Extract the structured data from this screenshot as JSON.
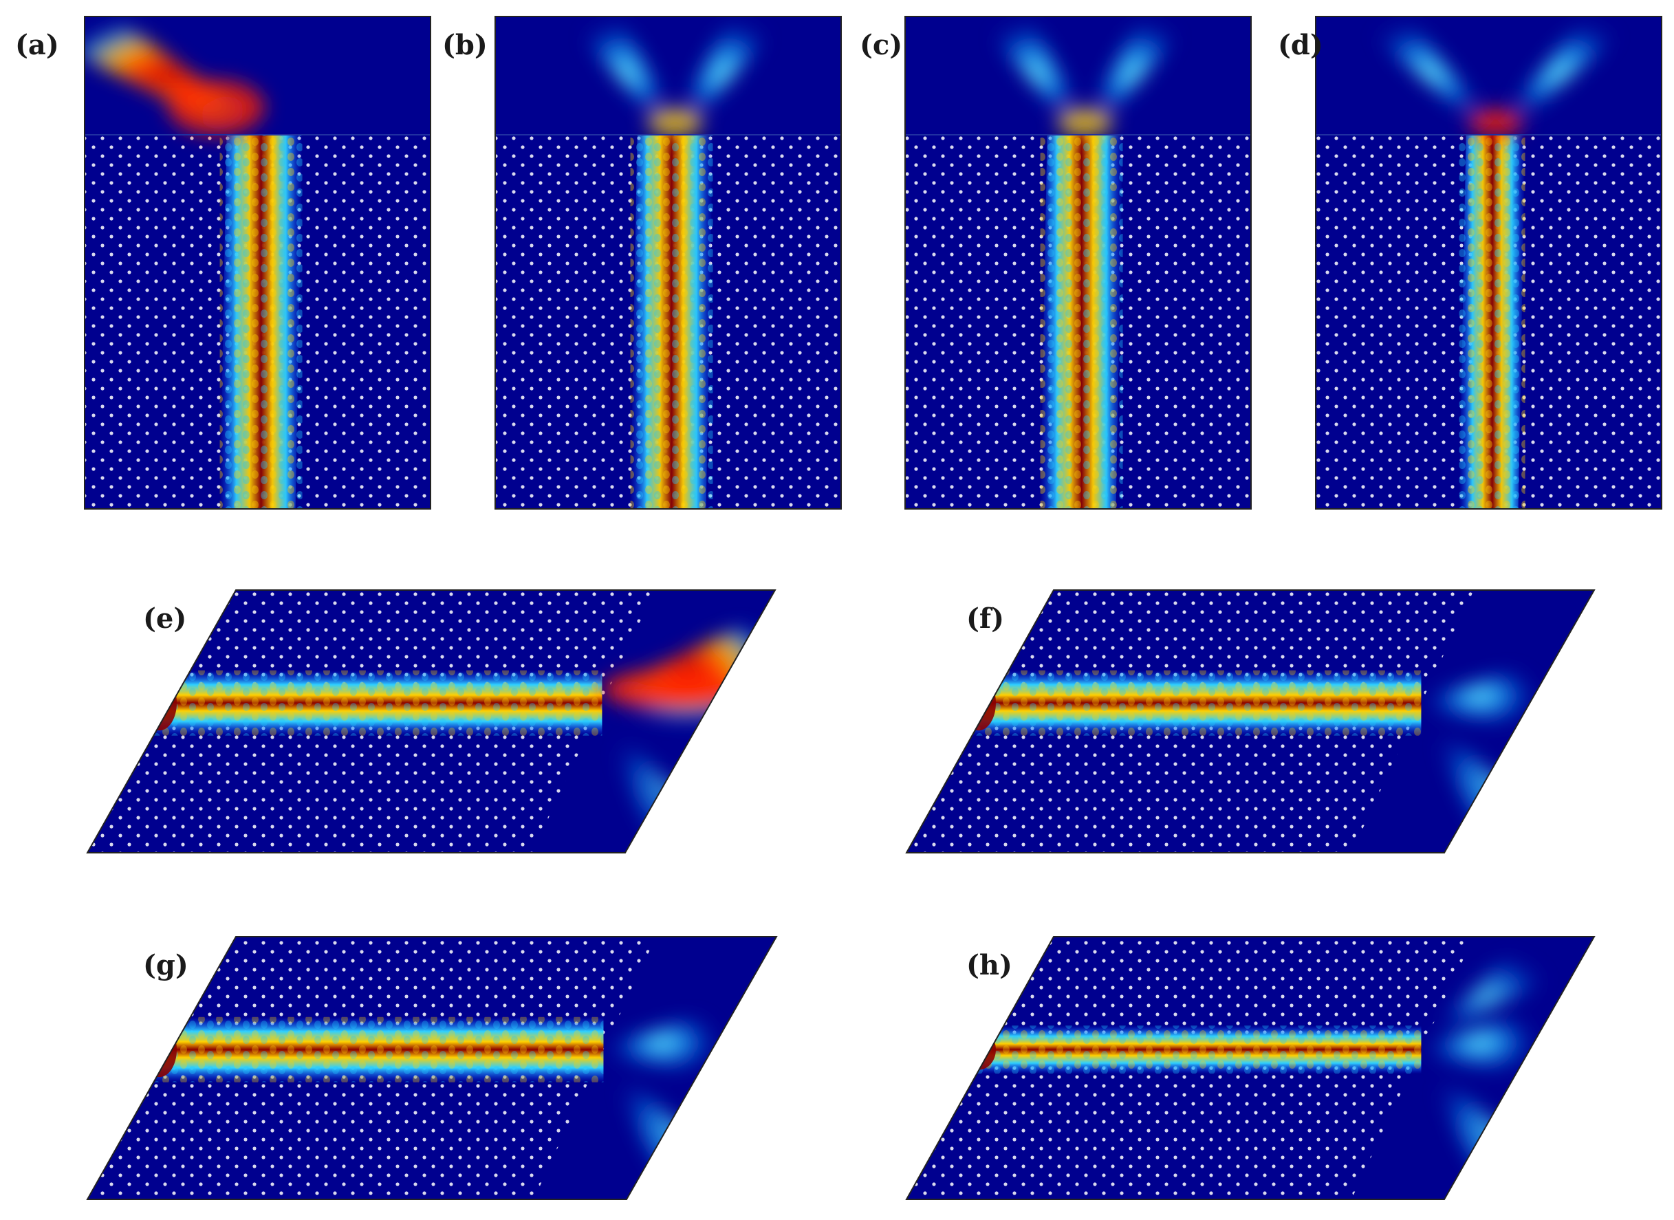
{
  "figure": {
    "panels": [
      {
        "id": "a",
        "label": "(a)",
        "layout": "vertical",
        "incidence": "single-left",
        "beam_intensity": "high"
      },
      {
        "id": "b",
        "label": "(b)",
        "layout": "vertical",
        "incidence": "split-symmetric",
        "beam_intensity": "medium"
      },
      {
        "id": "c",
        "label": "(c)",
        "layout": "vertical",
        "incidence": "split-symmetric",
        "beam_intensity": "medium"
      },
      {
        "id": "d",
        "label": "(d)",
        "layout": "vertical",
        "incidence": "split-wide",
        "beam_intensity": "high"
      },
      {
        "id": "e",
        "label": "(e)",
        "layout": "parallelogram",
        "incidence": "single-bright",
        "beam_intensity": "high"
      },
      {
        "id": "f",
        "label": "(f)",
        "layout": "parallelogram",
        "incidence": "split",
        "beam_intensity": "medium"
      },
      {
        "id": "g",
        "label": "(g)",
        "layout": "parallelogram",
        "incidence": "split",
        "beam_intensity": "medium"
      },
      {
        "id": "h",
        "label": "(h)",
        "layout": "parallelogram",
        "incidence": "split-wide",
        "beam_intensity": "medium"
      }
    ],
    "colors": {
      "background_field": "#00008f",
      "lattice_dot": "#ffffff",
      "beam_core": "#8b0000",
      "beam_hot": "#ff2000",
      "beam_warm": "#ffd000",
      "beam_mid": "#2fd0ff",
      "beam_cool": "#0a40ff"
    }
  }
}
